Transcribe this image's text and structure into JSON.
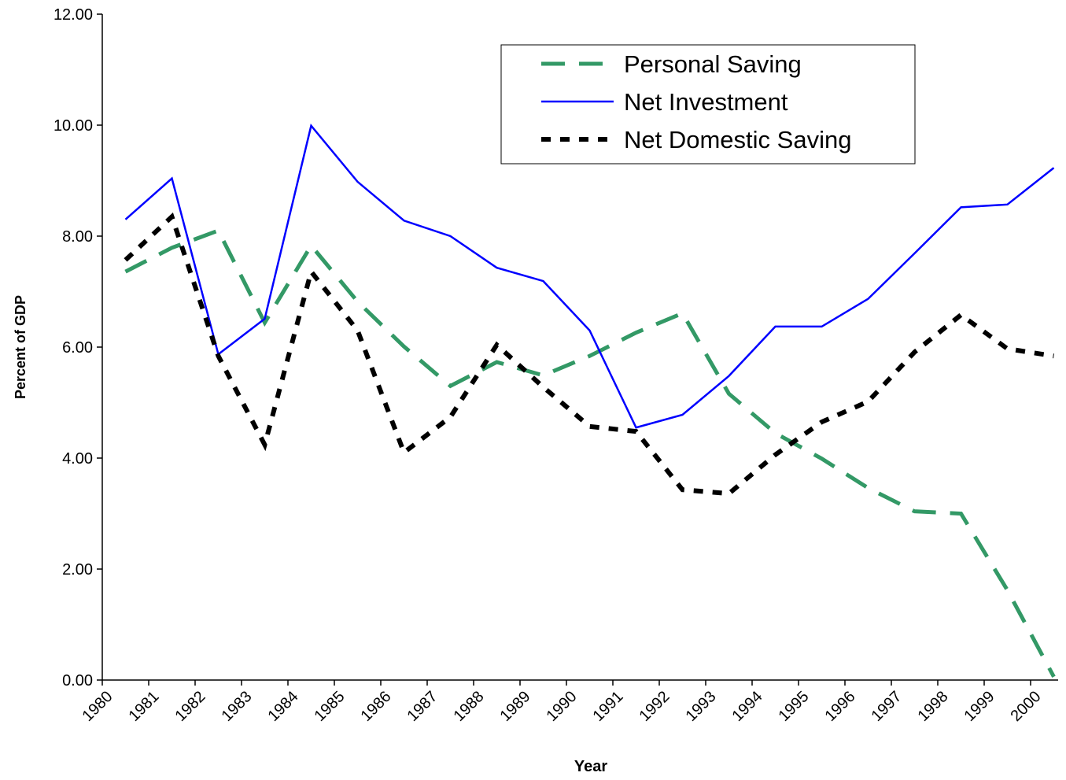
{
  "chart_data": {
    "type": "line",
    "x_label": "Year",
    "y_label": "Percent of GDP",
    "categories": [
      "1980",
      "1981",
      "1982",
      "1983",
      "1984",
      "1985",
      "1986",
      "1987",
      "1988",
      "1989",
      "1990",
      "1991",
      "1992",
      "1993",
      "1994",
      "1995",
      "1996",
      "1997",
      "1998",
      "1999",
      "2000"
    ],
    "series": [
      {
        "name": "Personal Saving",
        "color": "#339966",
        "dash": "dashed",
        "values": [
          7.36,
          7.79,
          8.1,
          6.44,
          7.83,
          6.82,
          6.01,
          5.3,
          5.73,
          5.49,
          5.84,
          6.26,
          6.61,
          5.16,
          4.45,
          3.99,
          3.46,
          3.04,
          3.0,
          1.62,
          0.06
        ]
      },
      {
        "name": "Net Investment",
        "color": "#0000ff",
        "dash": "solid",
        "values": [
          8.3,
          9.04,
          5.87,
          6.51,
          9.99,
          8.98,
          8.28,
          8.0,
          7.43,
          7.19,
          6.3,
          4.55,
          4.78,
          5.48,
          6.37,
          6.37,
          6.87,
          7.69,
          8.52,
          8.57,
          9.23
        ]
      },
      {
        "name": "Net Domestic Saving",
        "color": "#000000",
        "dash": "dotted",
        "values": [
          7.57,
          8.35,
          5.84,
          4.24,
          7.36,
          6.3,
          4.1,
          4.74,
          6.04,
          5.28,
          4.57,
          4.48,
          3.43,
          3.36,
          4.06,
          4.65,
          5.02,
          5.91,
          6.58,
          5.97,
          5.84
        ]
      }
    ],
    "ylim": [
      0,
      12
    ],
    "yticks": [
      {
        "value": 0,
        "label": "0.00"
      },
      {
        "value": 2,
        "label": "2.00"
      },
      {
        "value": 4,
        "label": "4.00"
      },
      {
        "value": 6,
        "label": "6.00"
      },
      {
        "value": 8,
        "label": "8.00"
      },
      {
        "value": 10,
        "label": "10.00"
      },
      {
        "value": 12,
        "label": "12.00"
      }
    ],
    "grid": false,
    "legend": "upper right"
  }
}
